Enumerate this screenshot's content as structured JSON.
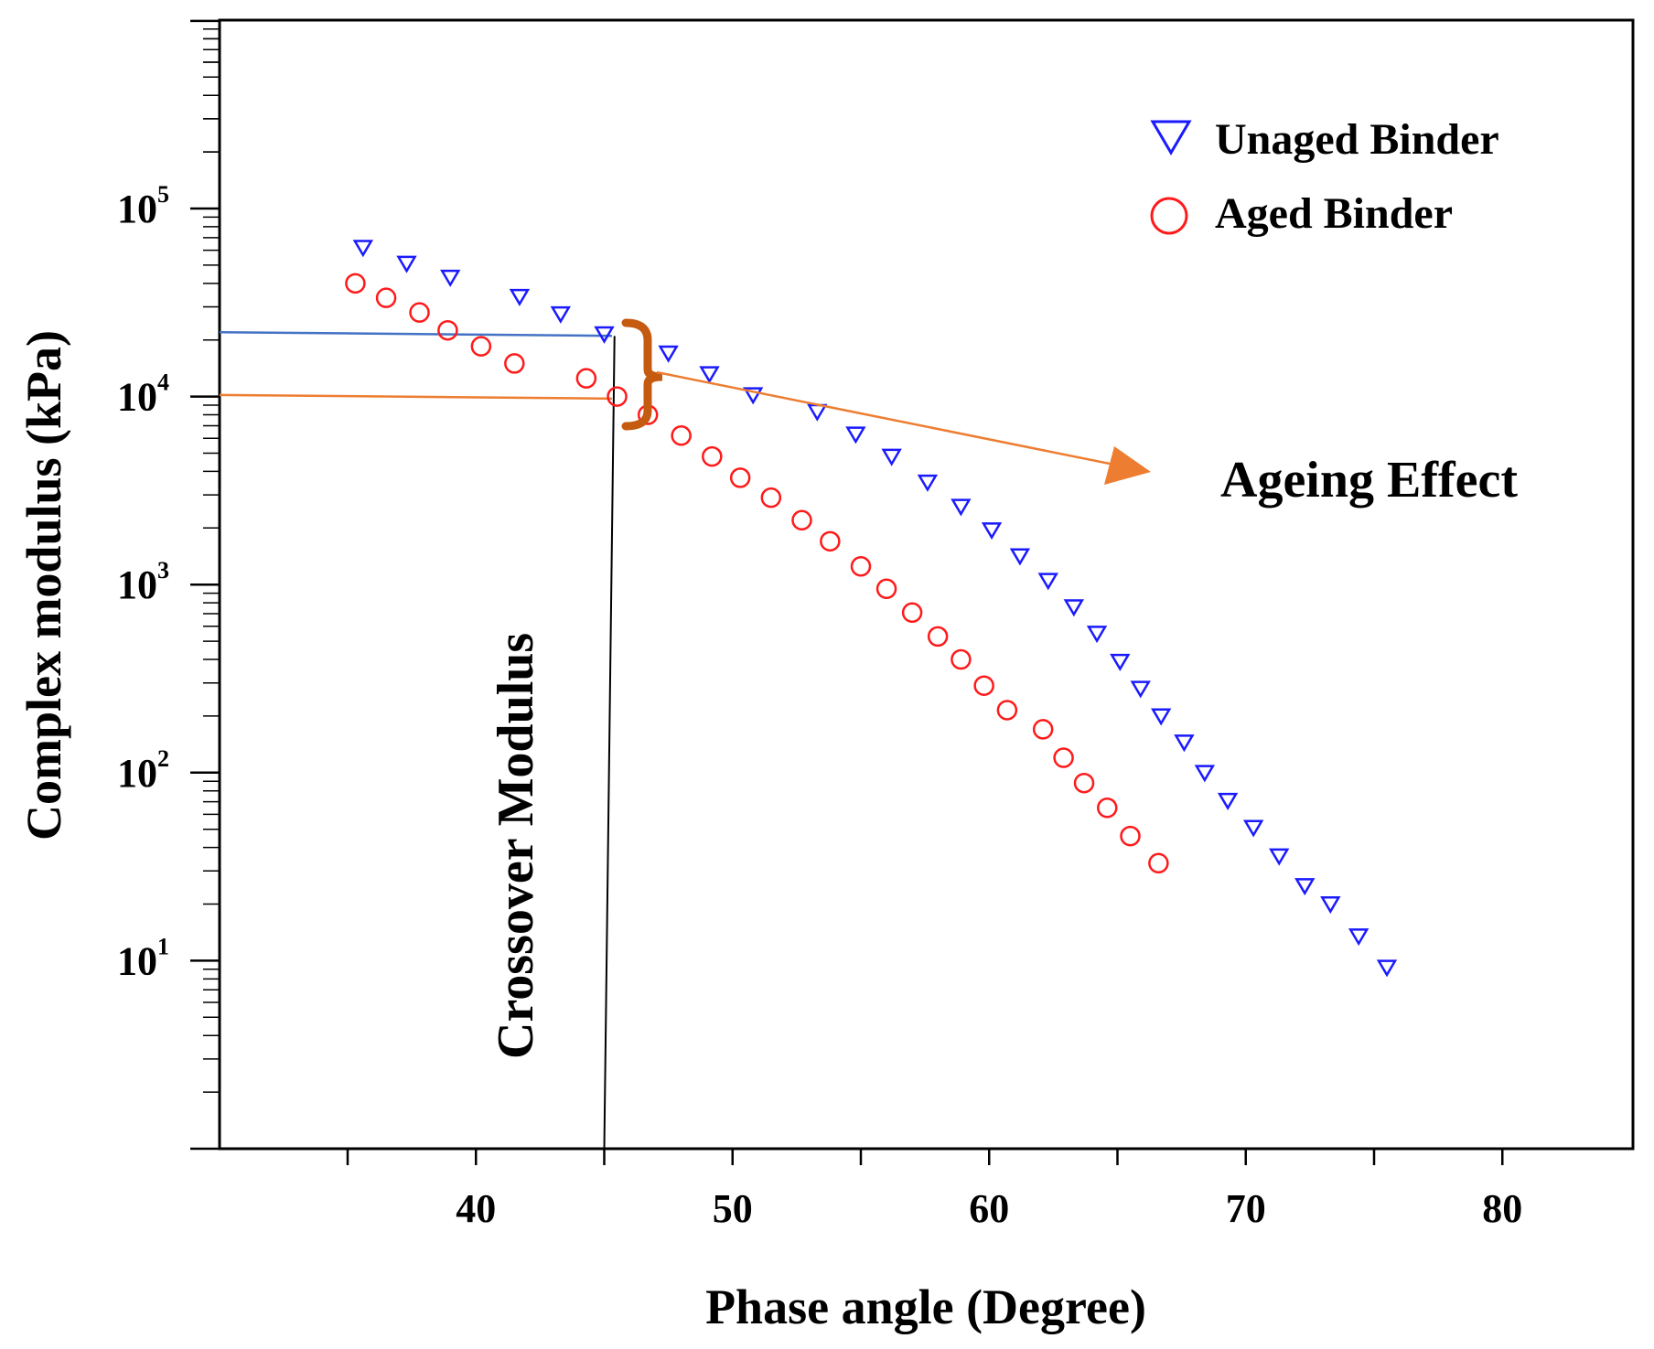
{
  "chart_data": {
    "type": "scatter",
    "title": "",
    "xlabel": "Phase angle (Degree)",
    "ylabel": "Complex modulus (kPa)",
    "xlim": [
      30,
      85
    ],
    "ylim_log10": [
      0,
      6
    ],
    "yscale": "log",
    "x_ticks": [
      40,
      50,
      60,
      70,
      80
    ],
    "x_tick_labels": [
      "40",
      "50",
      "60",
      "70",
      "80"
    ],
    "y_ticks": [
      {
        "base": "10",
        "exp": "1",
        "value": 10
      },
      {
        "base": "10",
        "exp": "2",
        "value": 100
      },
      {
        "base": "10",
        "exp": "3",
        "value": 1000
      },
      {
        "base": "10",
        "exp": "4",
        "value": 10000
      },
      {
        "base": "10",
        "exp": "5",
        "value": 100000
      }
    ],
    "grid": false,
    "legend_position": "top-right",
    "series": [
      {
        "name": "Unaged Binder",
        "marker": "triangle-down",
        "color": "#1a1aff",
        "points": [
          [
            35.6,
            62000
          ],
          [
            37.3,
            51000
          ],
          [
            39.0,
            43000
          ],
          [
            41.7,
            34000
          ],
          [
            43.3,
            27500
          ],
          [
            45.0,
            21500
          ],
          [
            47.5,
            17000
          ],
          [
            49.1,
            13200
          ],
          [
            50.8,
            10200
          ],
          [
            53.3,
            8300
          ],
          [
            54.8,
            6300
          ],
          [
            56.2,
            4800
          ],
          [
            57.6,
            3500
          ],
          [
            58.9,
            2600
          ],
          [
            60.1,
            1950
          ],
          [
            61.2,
            1420
          ],
          [
            62.3,
            1050
          ],
          [
            63.3,
            760
          ],
          [
            64.2,
            550
          ],
          [
            65.1,
            390
          ],
          [
            65.9,
            280
          ],
          [
            66.7,
            200
          ],
          [
            67.6,
            145
          ],
          [
            68.4,
            100
          ],
          [
            69.3,
            71
          ],
          [
            70.3,
            51
          ],
          [
            71.3,
            36
          ],
          [
            72.3,
            25
          ],
          [
            73.3,
            20
          ],
          [
            74.4,
            13.5
          ],
          [
            75.5,
            9.2
          ]
        ]
      },
      {
        "name": "Aged Binder",
        "marker": "circle",
        "color": "#ff1a1a",
        "points": [
          [
            35.3,
            40000
          ],
          [
            36.5,
            33500
          ],
          [
            37.8,
            28000
          ],
          [
            38.9,
            22500
          ],
          [
            40.2,
            18500
          ],
          [
            41.5,
            15000
          ],
          [
            44.3,
            12500
          ],
          [
            45.5,
            10000
          ],
          [
            46.7,
            8000
          ],
          [
            48.0,
            6200
          ],
          [
            49.2,
            4800
          ],
          [
            50.3,
            3700
          ],
          [
            51.5,
            2900
          ],
          [
            52.7,
            2200
          ],
          [
            53.8,
            1700
          ],
          [
            55.0,
            1250
          ],
          [
            56.0,
            950
          ],
          [
            57.0,
            710
          ],
          [
            58.0,
            530
          ],
          [
            58.9,
            400
          ],
          [
            59.8,
            290
          ],
          [
            60.7,
            215
          ],
          [
            62.1,
            170
          ],
          [
            62.9,
            120
          ],
          [
            63.7,
            88
          ],
          [
            64.6,
            65
          ],
          [
            65.5,
            46
          ],
          [
            66.6,
            33
          ]
        ]
      }
    ],
    "reference_lines": [
      {
        "name": "unaged-crossover",
        "color": "#4472c4",
        "y": 22000,
        "x_from": 30,
        "x_to": 45.3
      },
      {
        "name": "aged-crossover",
        "color": "#ed7d31",
        "y": 10200,
        "x_from": 30,
        "x_to": 45.3
      },
      {
        "name": "crossover-vertical",
        "color": "#000000",
        "x_top": 45.4,
        "x_bottom": 45.0,
        "y_top": 21000,
        "y_bottom": 1
      }
    ],
    "annotations": [
      {
        "text": "Crossover Modulus",
        "orientation": "vertical"
      },
      {
        "text": "Ageing Effect",
        "arrow_color": "#ed7d31",
        "brace_color": "#c55a11"
      }
    ]
  }
}
